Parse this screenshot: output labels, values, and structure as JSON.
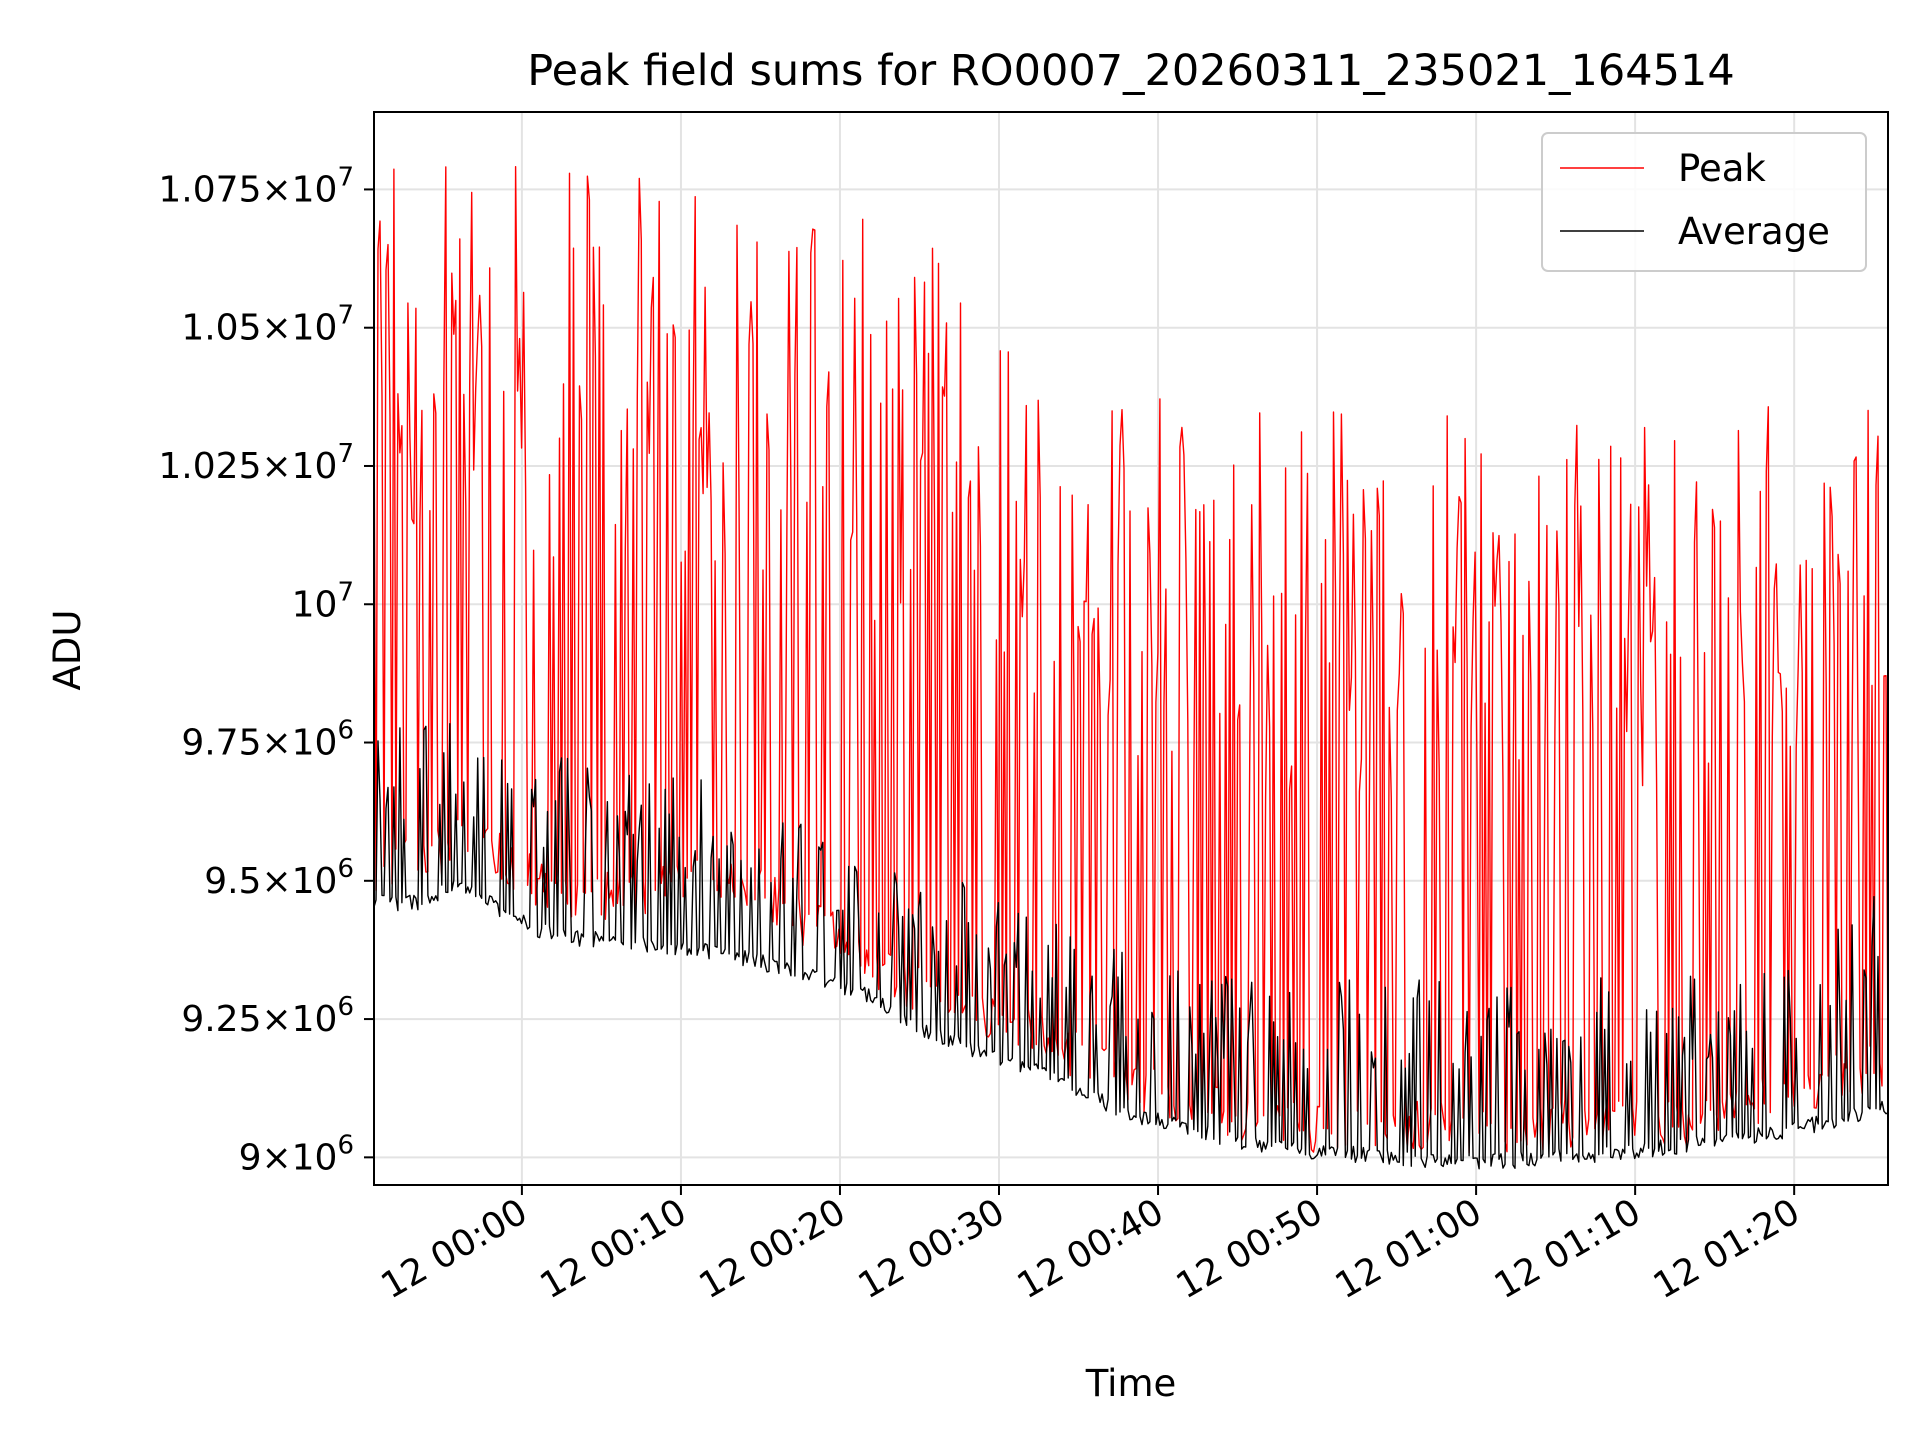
{
  "chart_data": {
    "type": "line",
    "title": "Peak field sums for RO0007_20260311_235021_164514",
    "xlabel": "Time",
    "ylabel": "ADU",
    "xlim": [
      -9.3,
      85.9
    ],
    "ylim": [
      8950000,
      10890000
    ],
    "grid": true,
    "legend_position": "top-right",
    "x_ticks": [
      {
        "value": 0,
        "label": "12 00:00"
      },
      {
        "value": 10,
        "label": "12 00:10"
      },
      {
        "value": 20,
        "label": "12 00:20"
      },
      {
        "value": 30,
        "label": "12 00:30"
      },
      {
        "value": 40,
        "label": "12 00:40"
      },
      {
        "value": 50,
        "label": "12 00:50"
      },
      {
        "value": 60,
        "label": "12 01:00"
      },
      {
        "value": 70,
        "label": "12 01:10"
      },
      {
        "value": 80,
        "label": "12 01:20"
      }
    ],
    "y_ticks": [
      {
        "value": 9000000,
        "mant": "9",
        "exp": "6"
      },
      {
        "value": 9250000,
        "mant": "9.25",
        "exp": "6"
      },
      {
        "value": 9500000,
        "mant": "9.5",
        "exp": "6"
      },
      {
        "value": 9750000,
        "mant": "9.75",
        "exp": "6"
      },
      {
        "value": 10000000,
        "mant": "10",
        "exp": "7"
      },
      {
        "value": 10250000,
        "mant": "1.025",
        "exp": "7"
      },
      {
        "value": 10500000,
        "mant": "1.05",
        "exp": "7"
      },
      {
        "value": 10750000,
        "mant": "1.075",
        "exp": "7"
      }
    ],
    "x_units": "minutes after 12 00:00",
    "series": [
      {
        "name": "Peak",
        "color": "#ff0000",
        "baseline": [
          [
            -9.3,
            9520000
          ],
          [
            -5.0,
            9550000
          ],
          [
            -3.0,
            9600000
          ],
          [
            -1.0,
            9530000
          ],
          [
            2.0,
            9480000
          ],
          [
            6.0,
            9470000
          ],
          [
            10.0,
            9500000
          ],
          [
            12.0,
            9510000
          ],
          [
            15.0,
            9480000
          ],
          [
            18.0,
            9420000
          ],
          [
            21.0,
            9380000
          ],
          [
            23.0,
            9330000
          ],
          [
            25.0,
            9300000
          ],
          [
            27.0,
            9270000
          ],
          [
            30.0,
            9250000
          ],
          [
            33.0,
            9210000
          ],
          [
            36.0,
            9170000
          ],
          [
            38.5,
            9120000
          ],
          [
            41.0,
            9110000
          ],
          [
            44.0,
            9080000
          ],
          [
            47.0,
            9060000
          ],
          [
            52.0,
            9050000
          ],
          [
            56.0,
            9060000
          ],
          [
            60.0,
            9050000
          ],
          [
            65.0,
            9060000
          ],
          [
            70.0,
            9060000
          ],
          [
            75.0,
            9070000
          ],
          [
            80.0,
            9120000
          ],
          [
            85.9,
            9170000
          ]
        ],
        "spike_levels": [
          [
            -9.3,
            10850000
          ],
          [
            -2.0,
            10800000
          ],
          [
            5.0,
            10780000
          ],
          [
            10.0,
            10770000
          ],
          [
            18.0,
            10720000
          ],
          [
            24.0,
            10680000
          ],
          [
            30.0,
            10560000
          ],
          [
            34.0,
            10480000
          ],
          [
            38.0,
            10400000
          ],
          [
            45.0,
            10350000
          ],
          [
            55.0,
            10350000
          ],
          [
            65.0,
            10340000
          ],
          [
            72.0,
            10350000
          ],
          [
            78.0,
            10380000
          ],
          [
            85.9,
            10430000
          ]
        ],
        "spike_rate": 0.5,
        "noise": 90000,
        "seed": 11
      },
      {
        "name": "Average",
        "color": "#000000",
        "baseline": [
          [
            -9.3,
            9460000
          ],
          [
            -6.0,
            9460000
          ],
          [
            -4.0,
            9500000
          ],
          [
            -1.0,
            9440000
          ],
          [
            2.0,
            9400000
          ],
          [
            6.0,
            9390000
          ],
          [
            10.0,
            9380000
          ],
          [
            14.0,
            9360000
          ],
          [
            18.0,
            9330000
          ],
          [
            22.0,
            9290000
          ],
          [
            25.0,
            9230000
          ],
          [
            28.0,
            9200000
          ],
          [
            32.0,
            9160000
          ],
          [
            35.0,
            9120000
          ],
          [
            38.0,
            9080000
          ],
          [
            41.0,
            9060000
          ],
          [
            45.0,
            9030000
          ],
          [
            50.0,
            9010000
          ],
          [
            55.0,
            9000000
          ],
          [
            60.0,
            8990000
          ],
          [
            65.0,
            9000000
          ],
          [
            70.0,
            9010000
          ],
          [
            75.0,
            9030000
          ],
          [
            80.0,
            9050000
          ],
          [
            85.9,
            9090000
          ]
        ],
        "spike_levels": [
          [
            -9.3,
            9780000
          ],
          [
            -4.0,
            9790000
          ],
          [
            0.0,
            9740000
          ],
          [
            10.0,
            9700000
          ],
          [
            20.0,
            9600000
          ],
          [
            30.0,
            9480000
          ],
          [
            40.0,
            9350000
          ],
          [
            50.0,
            9330000
          ],
          [
            60.0,
            9320000
          ],
          [
            70.0,
            9330000
          ],
          [
            80.0,
            9360000
          ],
          [
            85.9,
            9520000
          ]
        ],
        "spike_rate": 0.32,
        "noise": 30000,
        "seed": 29
      }
    ]
  }
}
